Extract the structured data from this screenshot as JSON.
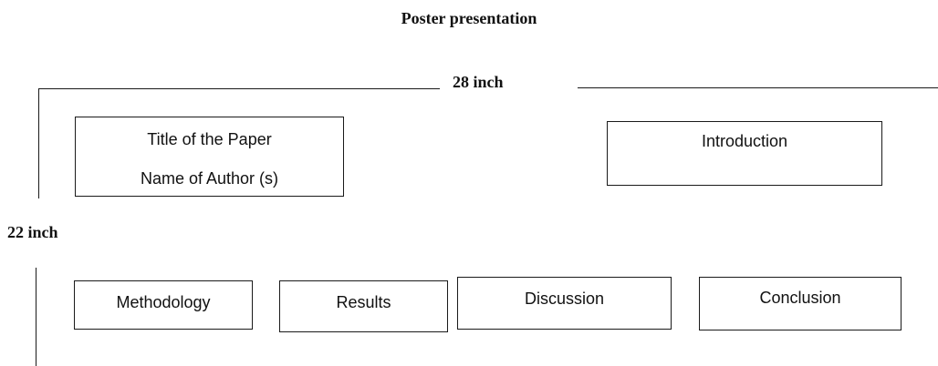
{
  "diagram": {
    "title": "Poster presentation",
    "width_label": "28 inch",
    "height_label": "22 inch",
    "title_box": {
      "line1": "Title of the Paper",
      "line2": "Name of Author (s)"
    },
    "sections": {
      "introduction": "Introduction",
      "methodology": "Methodology",
      "results": "Results",
      "discussion": "Discussion",
      "conclusion": "Conclusion"
    },
    "colors": {
      "line": "#1a1a1a",
      "text": "#111111",
      "background": "#ffffff"
    }
  }
}
